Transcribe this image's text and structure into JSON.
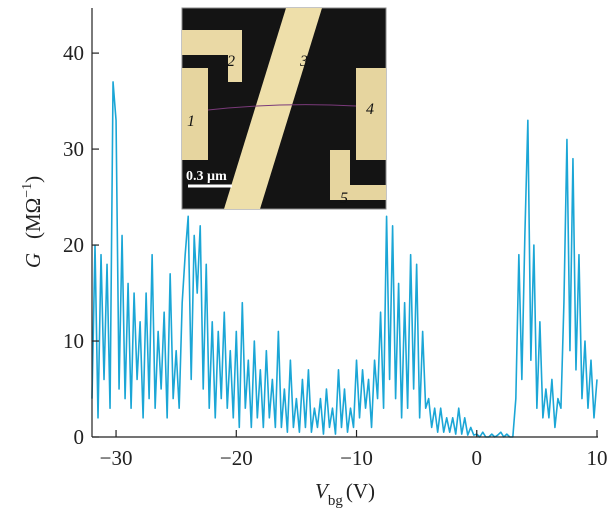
{
  "chart_data": {
    "type": "line",
    "y_label": {
      "symbol": "G",
      "unit": "(MΩ",
      "exponent": "−1",
      "close": ")"
    },
    "x_label": {
      "symbol": "V",
      "subscript": "bg",
      "unit": "(V)"
    },
    "xlim": [
      -32,
      10
    ],
    "ylim": [
      0,
      44.7
    ],
    "xticks": [
      {
        "value": -30,
        "label": "−30"
      },
      {
        "value": -20,
        "label": "−20"
      },
      {
        "value": -10,
        "label": "−10"
      },
      0,
      10
    ],
    "yticks": [
      0,
      10,
      20,
      30,
      40
    ],
    "series": [
      {
        "color": "#1ba6d6",
        "x": [
          -32,
          -31.75,
          -31.5,
          -31.25,
          -31,
          -30.75,
          -30.5,
          -30.25,
          -30,
          -29.75,
          -29.5,
          -29.25,
          -29,
          -28.75,
          -28.5,
          -28.25,
          -28,
          -27.75,
          -27.5,
          -27.25,
          -27,
          -26.75,
          -26.5,
          -26.25,
          -26,
          -25.75,
          -25.5,
          -25.25,
          -25,
          -24.75,
          -24.5,
          -24.25,
          -24,
          -23.75,
          -23.5,
          -23.25,
          -23,
          -22.75,
          -22.5,
          -22.25,
          -22,
          -21.75,
          -21.5,
          -21.25,
          -21,
          -20.75,
          -20.5,
          -20.25,
          -20,
          -19.75,
          -19.5,
          -19.25,
          -19,
          -18.75,
          -18.5,
          -18.25,
          -18,
          -17.75,
          -17.5,
          -17.25,
          -17,
          -16.75,
          -16.5,
          -16.25,
          -16,
          -15.75,
          -15.5,
          -15.25,
          -15,
          -14.75,
          -14.5,
          -14.25,
          -14,
          -13.75,
          -13.5,
          -13.25,
          -13,
          -12.75,
          -12.5,
          -12.25,
          -12,
          -11.75,
          -11.5,
          -11.25,
          -11,
          -10.75,
          -10.5,
          -10.25,
          -10,
          -9.75,
          -9.5,
          -9.25,
          -9,
          -8.75,
          -8.5,
          -8.25,
          -8,
          -7.75,
          -7.5,
          -7.25,
          -7,
          -6.75,
          -6.5,
          -6.25,
          -6,
          -5.75,
          -5.5,
          -5.25,
          -5,
          -4.75,
          -4.5,
          -4.25,
          -4,
          -3.75,
          -3.5,
          -3.25,
          -3,
          -2.75,
          -2.5,
          -2.25,
          -2,
          -1.75,
          -1.5,
          -1.25,
          -1,
          -0.75,
          -0.5,
          -0.25,
          0,
          0.25,
          0.5,
          0.75,
          1,
          1.25,
          1.5,
          1.75,
          2,
          2.25,
          2.5,
          2.75,
          3,
          3.25,
          3.5,
          3.75,
          4,
          4.25,
          4.5,
          4.75,
          5,
          5.25,
          5.5,
          5.75,
          6,
          6.25,
          6.5,
          6.75,
          7,
          7.25,
          7.5,
          7.75,
          8,
          8.25,
          8.5,
          8.75,
          9,
          9.25,
          9.5,
          9.75,
          10
        ],
        "values": [
          4,
          20,
          2,
          19,
          6,
          18,
          3,
          37,
          33,
          5,
          21,
          4,
          16,
          3,
          15,
          6,
          12,
          2,
          15,
          4,
          19,
          3,
          11,
          5,
          13,
          2,
          17,
          4,
          9,
          3,
          14,
          19,
          23,
          6,
          21,
          15,
          22,
          5,
          18,
          3,
          12,
          2,
          11,
          4,
          13,
          3,
          9,
          2,
          11,
          1,
          14,
          3,
          8,
          1,
          10,
          2,
          7,
          1,
          9,
          2,
          6,
          1,
          11,
          1,
          5,
          0.5,
          8,
          1,
          4,
          0.5,
          6,
          1,
          7,
          0.5,
          3,
          1,
          4,
          0.3,
          5,
          1,
          3,
          0.3,
          7,
          1,
          5,
          0.5,
          3,
          1,
          8,
          2,
          7,
          3,
          6,
          1,
          8,
          4,
          13,
          3,
          23,
          6,
          22,
          4,
          16,
          2,
          14,
          3,
          19,
          5,
          18,
          2,
          11,
          3,
          4,
          1,
          3,
          0.5,
          3,
          0.5,
          2,
          0.5,
          2,
          0.3,
          3,
          0.3,
          2,
          0.2,
          1,
          0.2,
          0.3,
          0,
          0.5,
          0,
          0,
          0.3,
          0,
          0.2,
          0.5,
          0,
          0.3,
          0,
          0,
          4,
          19,
          6,
          21,
          33,
          8,
          20,
          3,
          12,
          2,
          5,
          2,
          6,
          1,
          4,
          3,
          14,
          31,
          9,
          29,
          7,
          19,
          4,
          10,
          3,
          8,
          2,
          6
        ]
      }
    ],
    "inset": {
      "labels": [
        "1",
        "2",
        "3",
        "4",
        "5"
      ],
      "scale": "0.3 µm"
    }
  }
}
